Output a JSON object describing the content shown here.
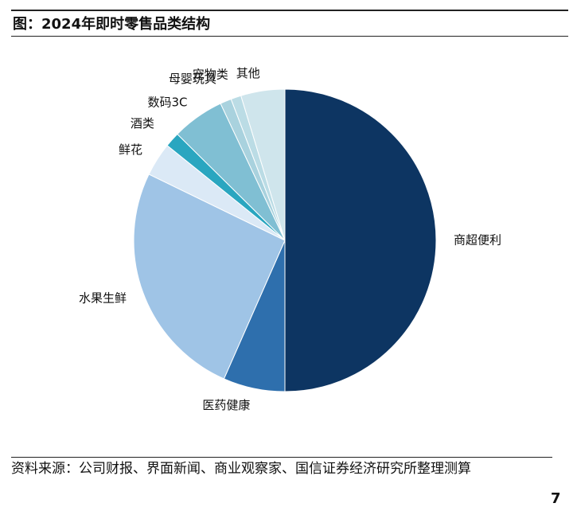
{
  "chart_data": {
    "type": "pie",
    "title": "图：2024年即时零售品类结构",
    "categories": [
      "商超便利",
      "医药健康",
      "水果生鲜",
      "鲜花",
      "酒类",
      "数码3C",
      "母婴玩具",
      "宠物类",
      "其他"
    ],
    "values": [
      50,
      6.6,
      25.6,
      3.6,
      1.6,
      5.6,
      1.2,
      1.1,
      4.7
    ],
    "colors": [
      "#0d3562",
      "#2e6fad",
      "#9fc4e6",
      "#dbe9f6",
      "#2aa6c0",
      "#80bfd3",
      "#a9d2de",
      "#bbdce5",
      "#cfe5ec"
    ]
  },
  "source": "资料来源：公司财报、界面新闻、商业观察家、国信证券经济研究所整理测算",
  "page_number": "7"
}
